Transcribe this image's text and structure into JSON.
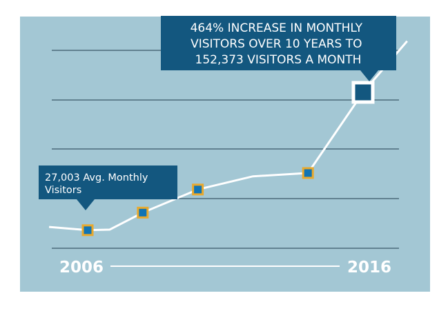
{
  "colors": {
    "page_bg": "#ffffff",
    "panel_bg": "#a3c7d4",
    "line": "#ffffff",
    "gridline": "#1f3b4d",
    "callout_bg": "#13577f",
    "callout_text": "#ffffff",
    "marker_fill": "#1074b4",
    "marker_border": "#e8a92e",
    "final_marker_fill": "#13577f",
    "final_marker_border": "#ffffff",
    "axis_rule": "#ffffff",
    "axis_text": "#ffffff"
  },
  "chart_data": {
    "type": "line",
    "title": "",
    "xlabel": "",
    "ylabel": "",
    "grid": true,
    "x_tick_labels": [
      "2006",
      "2016"
    ],
    "series": [
      {
        "values": [
          {
            "x": 2005.3,
            "y": 30000
          },
          {
            "x": 2006,
            "y": 27003
          },
          {
            "x": 2006.4,
            "y": 27500
          },
          {
            "x": 2007,
            "y": 43000
          },
          {
            "x": 2008,
            "y": 64000
          },
          {
            "x": 2009,
            "y": 76000
          },
          {
            "x": 2010,
            "y": 79000
          },
          {
            "x": 2011,
            "y": 152373
          },
          {
            "x": 2011.8,
            "y": 199000
          }
        ]
      }
    ],
    "markers": [
      {
        "x": 2006,
        "y": 27003
      },
      {
        "x": 2007,
        "y": 43000
      },
      {
        "x": 2008,
        "y": 64000
      },
      {
        "x": 2010,
        "y": 79000
      },
      {
        "x": 2011,
        "y": 152373,
        "highlight": true
      }
    ],
    "annotations": {
      "start": "27,003 Avg. Monthly Visitors",
      "end_lines": [
        "464% INCREASE IN MONTHLY",
        "VISITORS OVER 10 YEARS TO",
        "152,373 VISITORS A MONTH"
      ]
    }
  }
}
